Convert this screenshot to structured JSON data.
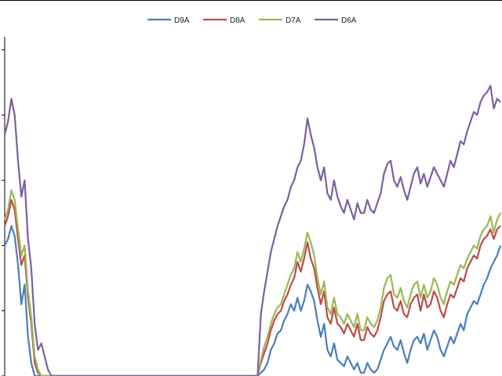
{
  "chart_data": {
    "type": "line",
    "title": "",
    "xlabel": "",
    "ylabel": "",
    "grid": false,
    "legend_position": "top",
    "ylim": [
      0,
      520
    ],
    "x_count": 150,
    "series": [
      {
        "name": "D9A",
        "color": "#4a7ebb",
        "values": [
          200,
          210,
          230,
          215,
          170,
          110,
          140,
          60,
          20,
          0,
          0,
          0,
          0,
          0,
          0,
          0,
          0,
          0,
          0,
          0,
          0,
          0,
          0,
          0,
          0,
          0,
          0,
          0,
          0,
          0,
          0,
          0,
          0,
          0,
          0,
          0,
          0,
          0,
          0,
          0,
          0,
          0,
          0,
          0,
          0,
          0,
          0,
          0,
          0,
          0,
          0,
          0,
          0,
          0,
          0,
          0,
          0,
          0,
          0,
          0,
          0,
          0,
          0,
          0,
          0,
          0,
          0,
          0,
          0,
          0,
          0,
          0,
          0,
          0,
          0,
          0,
          0,
          5,
          10,
          20,
          40,
          50,
          65,
          70,
          85,
          95,
          110,
          100,
          120,
          100,
          115,
          140,
          130,
          115,
          85,
          60,
          80,
          40,
          30,
          50,
          25,
          20,
          15,
          30,
          20,
          10,
          20,
          5,
          5,
          20,
          10,
          5,
          10,
          25,
          40,
          50,
          60,
          45,
          40,
          55,
          35,
          20,
          40,
          55,
          60,
          50,
          65,
          40,
          55,
          70,
          60,
          40,
          30,
          45,
          60,
          50,
          65,
          80,
          70,
          95,
          105,
          115,
          110,
          125,
          140,
          150,
          165,
          175,
          185,
          200
        ]
      },
      {
        "name": "D8A",
        "color": "#be4b48",
        "values": [
          230,
          245,
          270,
          255,
          210,
          170,
          185,
          120,
          80,
          20,
          5,
          0,
          0,
          0,
          0,
          0,
          0,
          0,
          0,
          0,
          0,
          0,
          0,
          0,
          0,
          0,
          0,
          0,
          0,
          0,
          0,
          0,
          0,
          0,
          0,
          0,
          0,
          0,
          0,
          0,
          0,
          0,
          0,
          0,
          0,
          0,
          0,
          0,
          0,
          0,
          0,
          0,
          0,
          0,
          0,
          0,
          0,
          0,
          0,
          0,
          0,
          0,
          0,
          0,
          0,
          0,
          0,
          0,
          0,
          0,
          0,
          0,
          0,
          0,
          0,
          0,
          0,
          20,
          35,
          50,
          70,
          85,
          95,
          100,
          115,
          125,
          140,
          150,
          175,
          160,
          180,
          205,
          180,
          165,
          135,
          110,
          130,
          90,
          80,
          105,
          80,
          75,
          65,
          80,
          70,
          60,
          80,
          55,
          55,
          75,
          65,
          60,
          70,
          90,
          115,
          125,
          130,
          105,
          100,
          115,
          95,
          90,
          110,
          120,
          125,
          100,
          125,
          105,
          110,
          130,
          120,
          100,
          90,
          110,
          125,
          120,
          135,
          150,
          145,
          165,
          175,
          185,
          180,
          200,
          210,
          215,
          225,
          210,
          225,
          230
        ]
      },
      {
        "name": "D7A",
        "color": "#98b954",
        "values": [
          240,
          255,
          285,
          270,
          225,
          185,
          200,
          130,
          90,
          30,
          10,
          0,
          0,
          0,
          0,
          0,
          0,
          0,
          0,
          0,
          0,
          0,
          0,
          0,
          0,
          0,
          0,
          0,
          0,
          0,
          0,
          0,
          0,
          0,
          0,
          0,
          0,
          0,
          0,
          0,
          0,
          0,
          0,
          0,
          0,
          0,
          0,
          0,
          0,
          0,
          0,
          0,
          0,
          0,
          0,
          0,
          0,
          0,
          0,
          0,
          0,
          0,
          0,
          0,
          0,
          0,
          0,
          0,
          0,
          0,
          0,
          0,
          0,
          0,
          0,
          0,
          0,
          25,
          45,
          60,
          80,
          95,
          105,
          110,
          125,
          140,
          155,
          165,
          190,
          175,
          195,
          220,
          205,
          185,
          150,
          125,
          145,
          105,
          95,
          120,
          95,
          90,
          80,
          95,
          85,
          75,
          95,
          70,
          70,
          90,
          80,
          75,
          85,
          105,
          135,
          150,
          155,
          125,
          120,
          135,
          115,
          105,
          125,
          140,
          145,
          120,
          140,
          120,
          130,
          150,
          140,
          120,
          110,
          130,
          145,
          140,
          155,
          170,
          165,
          180,
          190,
          200,
          195,
          215,
          225,
          230,
          245,
          220,
          240,
          250
        ]
      },
      {
        "name": "D6A",
        "color": "#7d5fa0",
        "values": [
          370,
          390,
          425,
          400,
          330,
          275,
          300,
          210,
          165,
          80,
          40,
          50,
          30,
          10,
          0,
          0,
          0,
          0,
          0,
          0,
          0,
          0,
          0,
          0,
          0,
          0,
          0,
          0,
          0,
          0,
          0,
          0,
          0,
          0,
          0,
          0,
          0,
          0,
          0,
          0,
          0,
          0,
          0,
          0,
          0,
          0,
          0,
          0,
          0,
          0,
          0,
          0,
          0,
          0,
          0,
          0,
          0,
          0,
          0,
          0,
          0,
          0,
          0,
          0,
          0,
          0,
          0,
          0,
          0,
          0,
          0,
          0,
          0,
          0,
          0,
          0,
          0,
          95,
          130,
          160,
          190,
          210,
          230,
          245,
          260,
          270,
          290,
          300,
          320,
          330,
          355,
          395,
          370,
          350,
          320,
          300,
          320,
          280,
          270,
          300,
          275,
          260,
          250,
          270,
          255,
          240,
          265,
          250,
          250,
          270,
          255,
          250,
          265,
          280,
          310,
          325,
          330,
          300,
          290,
          305,
          285,
          270,
          290,
          310,
          320,
          295,
          310,
          290,
          305,
          320,
          310,
          300,
          290,
          310,
          330,
          320,
          340,
          360,
          355,
          375,
          390,
          405,
          400,
          420,
          430,
          435,
          445,
          410,
          425,
          420
        ]
      }
    ]
  }
}
